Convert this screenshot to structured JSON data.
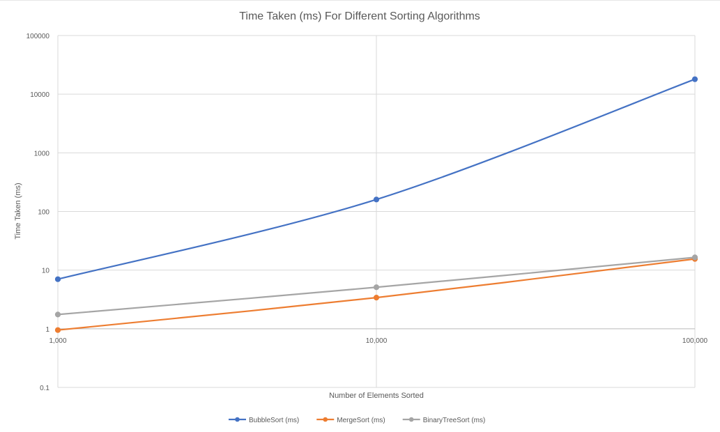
{
  "chart_data": {
    "type": "line",
    "title": "Time Taken (ms) For Different Sorting Algorithms",
    "xlabel": "Number of Elements Sorted",
    "ylabel": "Time Taken (ms)",
    "x_scale": "log",
    "y_scale": "log",
    "x_ticks": [
      1000,
      10000,
      100000
    ],
    "x_tick_labels": [
      "1,000",
      "10,000",
      "100,000"
    ],
    "y_ticks": [
      0.1,
      1,
      10,
      100,
      1000,
      10000,
      100000
    ],
    "y_tick_labels": [
      "0.1",
      "1",
      "10",
      "100",
      "1000",
      "10000",
      "100000"
    ],
    "xlim": [
      1000,
      100000
    ],
    "ylim": [
      0.1,
      100000
    ],
    "grid": true,
    "legend_position": "bottom",
    "series": [
      {
        "name": "BubbleSort (ms)",
        "color": "#4472c4",
        "x": [
          1000,
          10000,
          100000
        ],
        "values": [
          7,
          160,
          18000
        ]
      },
      {
        "name": "MergeSort (ms)",
        "color": "#ed7d31",
        "x": [
          1000,
          10000,
          100000
        ],
        "values": [
          0.95,
          3.4,
          15.5
        ]
      },
      {
        "name": "BinaryTreeSort (ms)",
        "color": "#a5a5a5",
        "x": [
          1000,
          10000,
          100000
        ],
        "values": [
          1.75,
          5.1,
          16.5
        ]
      }
    ]
  }
}
